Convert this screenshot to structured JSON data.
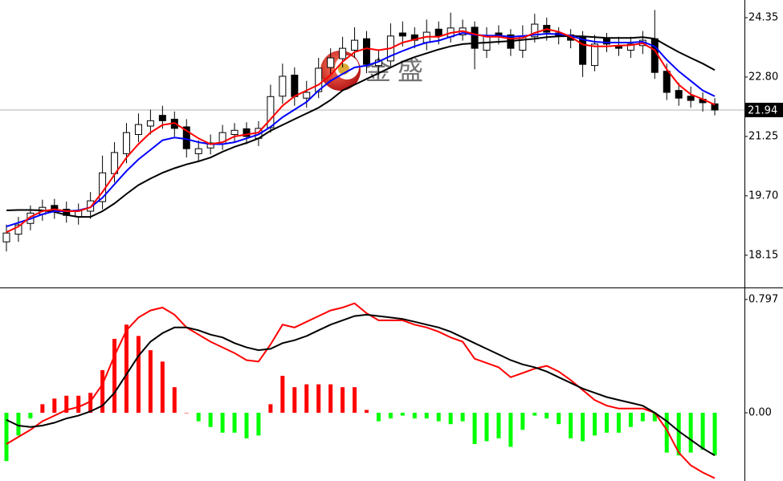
{
  "chart_data": [
    {
      "type": "candlestick",
      "ylim": [
        17.33,
        24.81
      ],
      "yticks": [
        24.35,
        {
          "value": 22.8,
          "label": "22.80"
        },
        21.25,
        {
          "value": 19.7,
          "label": "19.70"
        },
        18.15
      ],
      "last_price": 21.94,
      "watermark": "金盛",
      "up_color": "#ffffff",
      "down_color": "#000000",
      "edge_color": "#000000",
      "open": [
        18.5,
        18.7,
        18.98,
        19.22,
        19.45,
        19.35,
        19.15,
        19.3,
        19.55,
        20.28,
        20.8,
        21.3,
        21.52,
        21.8,
        21.7,
        21.5,
        20.8,
        20.95,
        21.05,
        21.3,
        21.45,
        21.2,
        21.48,
        22.3,
        22.85,
        22.25,
        22.42,
        23.05,
        23.28,
        23.5,
        23.8,
        23.1,
        23.22,
        23.95,
        23.9,
        23.7,
        24.05,
        23.85,
        23.9,
        24.1,
        23.5,
        23.95,
        23.9,
        23.5,
        23.85,
        24.15,
        23.95,
        23.9,
        23.85,
        23.1,
        23.8,
        23.62,
        23.5,
        23.62,
        23.8,
        22.95,
        22.45,
        22.3,
        22.22,
        22.1
      ],
      "high": [
        18.95,
        19.15,
        19.45,
        19.6,
        19.62,
        19.55,
        19.5,
        19.8,
        20.75,
        21.1,
        21.6,
        21.85,
        21.95,
        22.05,
        21.9,
        21.7,
        21.15,
        21.3,
        21.55,
        21.6,
        21.62,
        21.65,
        22.6,
        23.15,
        23.05,
        22.7,
        23.3,
        23.55,
        23.85,
        24.1,
        24.0,
        23.5,
        24.2,
        24.25,
        24.1,
        24.3,
        24.25,
        24.48,
        24.3,
        24.25,
        24.1,
        24.15,
        24.05,
        24.15,
        24.45,
        24.35,
        24.1,
        24.05,
        24.0,
        23.9,
        23.95,
        23.85,
        23.85,
        24.0,
        24.55,
        23.15,
        22.65,
        22.55,
        22.4,
        22.25
      ],
      "low": [
        18.25,
        18.5,
        18.8,
        19.05,
        19.1,
        19.0,
        18.95,
        19.1,
        19.35,
        20.05,
        20.55,
        21.1,
        21.3,
        21.45,
        21.25,
        20.7,
        20.6,
        20.78,
        20.9,
        21.1,
        21.05,
        21.0,
        21.35,
        22.1,
        22.05,
        22.0,
        22.25,
        22.85,
        23.05,
        23.3,
        22.9,
        22.85,
        23.05,
        23.6,
        23.55,
        23.5,
        23.65,
        23.7,
        23.75,
        23.0,
        23.3,
        23.65,
        23.35,
        23.3,
        23.7,
        23.75,
        23.65,
        23.55,
        22.8,
        22.95,
        23.45,
        23.35,
        23.3,
        23.4,
        22.75,
        22.2,
        22.05,
        22.0,
        21.9,
        21.8
      ],
      "close": [
        18.73,
        18.94,
        19.25,
        19.4,
        19.32,
        19.19,
        19.32,
        19.57,
        20.3,
        20.83,
        21.35,
        21.56,
        21.66,
        21.66,
        21.46,
        20.93,
        20.93,
        21.08,
        21.35,
        21.41,
        21.25,
        21.46,
        22.29,
        22.82,
        22.29,
        22.4,
        23.03,
        23.3,
        23.55,
        23.76,
        23.13,
        23.24,
        23.87,
        23.87,
        23.76,
        23.97,
        23.87,
        24.08,
        24.08,
        23.55,
        23.87,
        23.87,
        23.55,
        23.87,
        24.18,
        23.97,
        23.87,
        23.76,
        23.13,
        23.66,
        23.66,
        23.55,
        23.66,
        23.76,
        22.92,
        22.4,
        22.25,
        22.19,
        22.13,
        21.94
      ],
      "series": [
        {
          "color": "#000000",
          "values": [
            19.32,
            19.33,
            19.33,
            19.32,
            19.28,
            19.2,
            19.15,
            19.15,
            19.3,
            19.5,
            19.75,
            19.98,
            20.15,
            20.3,
            20.42,
            20.52,
            20.6,
            20.7,
            20.85,
            20.98,
            21.08,
            21.2,
            21.4,
            21.55,
            21.7,
            21.85,
            22.0,
            22.2,
            22.45,
            22.6,
            22.75,
            22.9,
            23.05,
            23.2,
            23.32,
            23.42,
            23.52,
            23.6,
            23.66,
            23.68,
            23.7,
            23.72,
            23.74,
            23.77,
            23.8,
            23.84,
            23.86,
            23.87,
            23.86,
            23.84,
            23.82,
            23.82,
            23.82,
            23.84,
            23.8,
            23.62,
            23.45,
            23.3,
            23.15,
            22.98
          ]
        },
        {
          "color": "#0000ff",
          "values": [
            18.9,
            19.0,
            19.1,
            19.22,
            19.3,
            19.3,
            19.32,
            19.4,
            19.65,
            20.0,
            20.35,
            20.65,
            20.9,
            21.15,
            21.22,
            21.18,
            21.1,
            21.05,
            21.05,
            21.1,
            21.2,
            21.3,
            21.5,
            21.75,
            21.95,
            22.15,
            22.45,
            22.7,
            22.88,
            23.05,
            23.1,
            23.2,
            23.35,
            23.48,
            23.6,
            23.7,
            23.75,
            23.85,
            23.95,
            23.9,
            23.88,
            23.88,
            23.85,
            23.87,
            23.9,
            23.93,
            23.92,
            23.88,
            23.78,
            23.72,
            23.7,
            23.7,
            23.7,
            23.72,
            23.6,
            23.25,
            22.95,
            22.7,
            22.45,
            22.3
          ]
        },
        {
          "color": "#ff0000",
          "values": [
            18.75,
            18.9,
            19.15,
            19.3,
            19.35,
            19.3,
            19.3,
            19.4,
            19.8,
            20.25,
            20.7,
            21.05,
            21.35,
            21.55,
            21.6,
            21.4,
            21.2,
            21.05,
            21.1,
            21.25,
            21.3,
            21.35,
            21.7,
            22.05,
            22.3,
            22.45,
            22.6,
            22.85,
            23.2,
            23.45,
            23.55,
            23.5,
            23.55,
            23.7,
            23.78,
            23.85,
            23.85,
            23.95,
            24.0,
            23.92,
            23.85,
            23.85,
            23.8,
            23.82,
            23.95,
            24.05,
            23.98,
            23.85,
            23.65,
            23.6,
            23.6,
            23.62,
            23.63,
            23.68,
            23.5,
            23.0,
            22.6,
            22.35,
            22.22,
            22.08
          ]
        }
      ]
    },
    {
      "type": "macd",
      "ylim": [
        -0.48,
        0.87
      ],
      "yticks": [
        0.797,
        {
          "value": 0,
          "label": "0.00"
        }
      ],
      "histogram": {
        "up_color": "#ff0000",
        "down_color": "#00ff00",
        "values": [
          -0.34,
          -0.16,
          -0.04,
          0.06,
          0.1,
          0.12,
          0.12,
          0.14,
          0.3,
          0.52,
          0.62,
          0.54,
          0.44,
          0.36,
          0.18,
          0.0,
          -0.06,
          -0.1,
          -0.14,
          -0.14,
          -0.18,
          -0.16,
          0.06,
          0.26,
          0.18,
          0.2,
          0.2,
          0.2,
          0.18,
          0.18,
          0.02,
          -0.06,
          -0.04,
          -0.02,
          -0.04,
          -0.04,
          -0.06,
          -0.08,
          -0.06,
          -0.22,
          -0.2,
          -0.18,
          -0.24,
          -0.12,
          -0.02,
          -0.04,
          -0.08,
          -0.18,
          -0.2,
          -0.16,
          -0.14,
          -0.14,
          -0.1,
          -0.06,
          -0.06,
          -0.28,
          -0.3,
          -0.28,
          -0.26,
          -0.3
        ]
      },
      "series": [
        {
          "color": "#ff0000",
          "values": [
            -0.22,
            -0.17,
            -0.12,
            -0.06,
            -0.02,
            0.02,
            0.04,
            0.08,
            0.2,
            0.4,
            0.58,
            0.67,
            0.72,
            0.74,
            0.69,
            0.6,
            0.55,
            0.5,
            0.46,
            0.42,
            0.37,
            0.36,
            0.48,
            0.62,
            0.6,
            0.64,
            0.68,
            0.72,
            0.74,
            0.77,
            0.7,
            0.65,
            0.65,
            0.65,
            0.62,
            0.6,
            0.57,
            0.53,
            0.5,
            0.38,
            0.35,
            0.32,
            0.25,
            0.28,
            0.31,
            0.33,
            0.29,
            0.23,
            0.16,
            0.09,
            0.05,
            0.03,
            0.03,
            0.03,
            0.0,
            -0.12,
            -0.28,
            -0.37,
            -0.42,
            -0.46
          ]
        },
        {
          "color": "#000000",
          "values": [
            -0.05,
            -0.09,
            -0.1,
            -0.09,
            -0.07,
            -0.04,
            -0.02,
            0.01,
            0.05,
            0.14,
            0.27,
            0.4,
            0.5,
            0.56,
            0.6,
            0.6,
            0.58,
            0.55,
            0.53,
            0.49,
            0.46,
            0.44,
            0.45,
            0.49,
            0.51,
            0.54,
            0.58,
            0.62,
            0.65,
            0.68,
            0.69,
            0.68,
            0.67,
            0.66,
            0.64,
            0.62,
            0.6,
            0.57,
            0.53,
            0.49,
            0.45,
            0.41,
            0.37,
            0.34,
            0.32,
            0.29,
            0.25,
            0.21,
            0.17,
            0.14,
            0.11,
            0.09,
            0.07,
            0.05,
            0.0,
            -0.06,
            -0.13,
            -0.19,
            -0.25,
            -0.3
          ]
        }
      ]
    }
  ]
}
